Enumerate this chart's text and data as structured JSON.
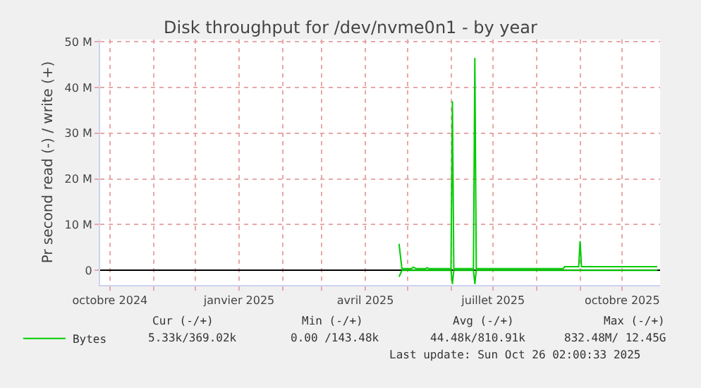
{
  "chart_data": {
    "type": "line",
    "title": "Disk throughput for /dev/nvme0n1 - by year",
    "ylabel": "Pr second read (-) / write (+)",
    "series": [
      {
        "name": "Bytes",
        "color": "#00cc00",
        "x": [
          "2025-04-25",
          "2025-04-27",
          "2025-05-04",
          "2025-05-05",
          "2025-05-07",
          "2025-05-14",
          "2025-05-15",
          "2025-05-16",
          "2025-06-01",
          "2025-06-02",
          "2025-06-03",
          "2025-06-17",
          "2025-06-18",
          "2025-06-19",
          "2025-08-20",
          "2025-08-21",
          "2025-08-31",
          "2025-09-01",
          "2025-09-02",
          "2025-10-26"
        ],
        "values": [
          5800000,
          400000,
          400000,
          700000,
          400000,
          400000,
          600000,
          400000,
          400000,
          37000000,
          400000,
          400000,
          46500000,
          400000,
          400000,
          800000,
          800000,
          6400000,
          800000,
          800000
        ]
      },
      {
        "color": "#00cc00",
        "x": [
          "2025-04-25",
          "2025-04-27",
          "2025-06-01",
          "2025-06-02",
          "2025-06-03",
          "2025-06-17",
          "2025-06-18",
          "2025-06-19",
          "2025-10-26"
        ],
        "values": [
          -1400000,
          0,
          0,
          -3000000,
          0,
          0,
          -3000000,
          0,
          0
        ]
      }
    ],
    "xlim": [
      "2024-09-24",
      "2025-10-28"
    ],
    "xticks": [
      {
        "value": "2024-10-01",
        "label": "octobre 2024"
      },
      {
        "value": "2024-11-01",
        "label": null
      },
      {
        "value": "2024-12-01",
        "label": null
      },
      {
        "value": "2025-01-01",
        "label": "janvier 2025"
      },
      {
        "value": "2025-02-01",
        "label": null
      },
      {
        "value": "2025-03-01",
        "label": null
      },
      {
        "value": "2025-04-01",
        "label": "avril 2025"
      },
      {
        "value": "2025-05-01",
        "label": null
      },
      {
        "value": "2025-06-01",
        "label": null
      },
      {
        "value": "2025-07-01",
        "label": "juillet 2025"
      },
      {
        "value": "2025-08-01",
        "label": null
      },
      {
        "value": "2025-09-01",
        "label": null
      },
      {
        "value": "2025-10-01",
        "label": "octobre 2025"
      }
    ],
    "ylim": [
      -3200000,
      50500000
    ],
    "yticks": [
      0,
      {
        "value": 10000000,
        "label": "10 M"
      },
      {
        "value": 20000000,
        "label": "20 M"
      },
      {
        "value": 30000000,
        "label": "30 M"
      },
      {
        "value": 40000000,
        "label": "40 M"
      },
      {
        "value": 50000000,
        "label": "50 M"
      }
    ],
    "grid": true,
    "legend": "bottom left",
    "marker": "none",
    "line_style": "solid",
    "annotations": [
      "Cur (-/+)",
      "Min (-/+)",
      "Avg (-/+)",
      "Max (-/+)",
      "5.33k/369.02k",
      "0.00 /143.48k",
      "44.48k/810.91k",
      "832.48M/ 12.45G",
      "Last update: Sun Oct 26 02:00:33 2025"
    ]
  }
}
